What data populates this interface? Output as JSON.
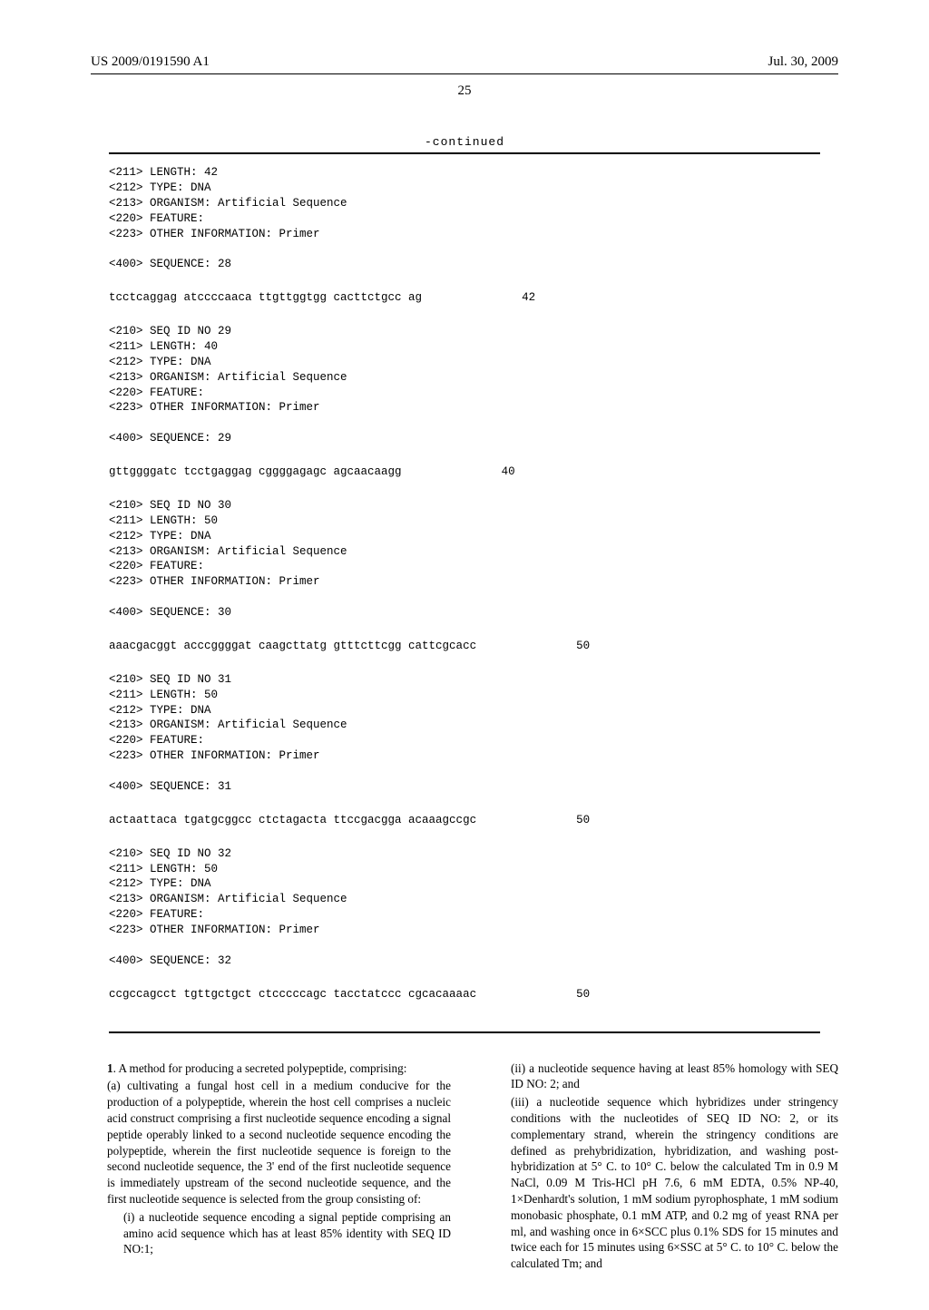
{
  "header": {
    "pub_number": "US 2009/0191590 A1",
    "pub_date": "Jul. 30, 2009"
  },
  "page_number": "25",
  "continued_label": "-continued",
  "sequences": [
    {
      "meta": "<211> LENGTH: 42\n<212> TYPE: DNA\n<213> ORGANISM: Artificial Sequence\n<220> FEATURE:\n<223> OTHER INFORMATION: Primer\n\n<400> SEQUENCE: 28",
      "seq": "tcctcaggag atccccaaca ttgttggtgg cacttctgcc ag",
      "len": "42"
    },
    {
      "meta": "<210> SEQ ID NO 29\n<211> LENGTH: 40\n<212> TYPE: DNA\n<213> ORGANISM: Artificial Sequence\n<220> FEATURE:\n<223> OTHER INFORMATION: Primer\n\n<400> SEQUENCE: 29",
      "seq": "gttggggatc tcctgaggag cggggagagc agcaacaagg",
      "len": "40"
    },
    {
      "meta": "<210> SEQ ID NO 30\n<211> LENGTH: 50\n<212> TYPE: DNA\n<213> ORGANISM: Artificial Sequence\n<220> FEATURE:\n<223> OTHER INFORMATION: Primer\n\n<400> SEQUENCE: 30",
      "seq": "aaacgacggt acccggggat caagcttatg gtttcttcgg cattcgcacc",
      "len": "50"
    },
    {
      "meta": "<210> SEQ ID NO 31\n<211> LENGTH: 50\n<212> TYPE: DNA\n<213> ORGANISM: Artificial Sequence\n<220> FEATURE:\n<223> OTHER INFORMATION: Primer\n\n<400> SEQUENCE: 31",
      "seq": "actaattaca tgatgcggcc ctctagacta ttccgacgga acaaagccgc",
      "len": "50"
    },
    {
      "meta": "<210> SEQ ID NO 32\n<211> LENGTH: 50\n<212> TYPE: DNA\n<213> ORGANISM: Artificial Sequence\n<220> FEATURE:\n<223> OTHER INFORMATION: Primer\n\n<400> SEQUENCE: 32",
      "seq": "ccgccagcct tgttgctgct ctcccccagc tacctatccc cgcacaaaac",
      "len": "50"
    }
  ],
  "claims": {
    "left": {
      "lead": "1. A method for producing a secreted polypeptide, comprising:",
      "a": "(a) cultivating a fungal host cell in a medium conducive for the production of a polypeptide, wherein the host cell comprises a nucleic acid construct comprising a first nucleotide sequence encoding a signal peptide operably linked to a second nucleotide sequence encoding the polypeptide, wherein the first nucleotide sequence is foreign to the second nucleotide sequence, the 3' end of the first nucleotide sequence is immediately upstream of the second nucleotide sequence, and the first nucleotide sequence is selected from the group consisting of:",
      "i": "(i) a nucleotide sequence encoding a signal peptide comprising an amino acid sequence which has at least 85% identity with SEQ ID NO:1;"
    },
    "right": {
      "ii": "(ii) a nucleotide sequence having at least 85% homology with SEQ ID NO: 2; and",
      "iii": "(iii) a nucleotide sequence which hybridizes under stringency conditions with the nucleotides of SEQ ID NO: 2, or its complementary strand, wherein the stringency conditions are defined as prehybridization, hybridization, and washing post-hybridization at 5° C. to 10° C. below the calculated Tm in 0.9 M NaCl, 0.09 M Tris-HCl pH 7.6, 6 mM EDTA, 0.5% NP-40, 1×Denhardt's solution, 1 mM sodium pyrophosphate, 1 mM sodium monobasic phosphate, 0.1 mM ATP, and 0.2 mg of yeast RNA per ml, and washing once in 6×SCC plus 0.1% SDS for 15 minutes and twice each for 15 minutes using 6×SSC at 5° C. to 10° C. below the calculated Tm; and"
    }
  }
}
